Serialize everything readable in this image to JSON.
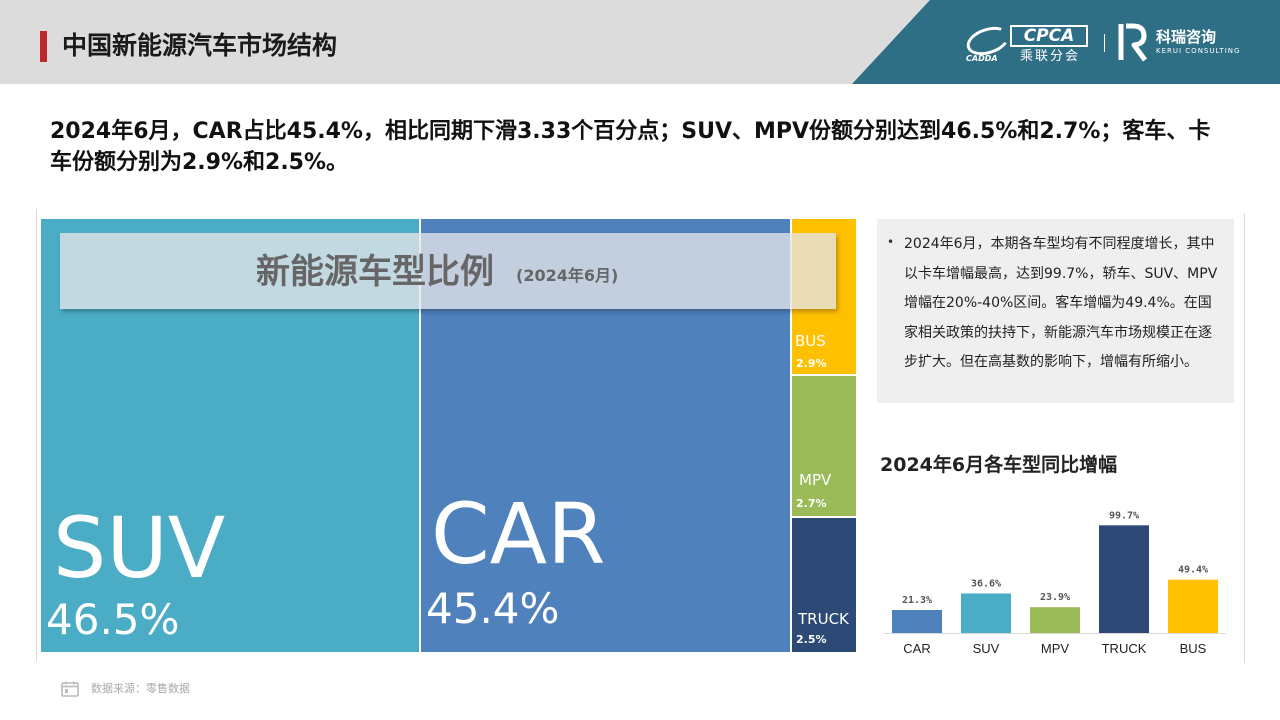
{
  "header": {
    "title": "中国新能源汽车市场结构",
    "logo_cpca": "CPCA",
    "logo_cpca_sub": "乘联分会",
    "logo_cpca_tag": "CADDA",
    "logo_kerui_name": "科瑞咨询",
    "logo_kerui_en": "KERUI CONSULTING",
    "band_color": "#2f6f86",
    "accent_color": "#c0262d"
  },
  "headline": "2024年6月，CAR占比45.4%，相比同期下滑3.33个百分点；SUV、MPV份额分别达到46.5%和2.7%；客车、卡车份额分别为2.9%和2.5%。",
  "note": {
    "text": "2024年6月，本期各车型均有不同程度增长，其中以卡车增幅最高，达到99.7%，轿车、SUV、MPV增幅在20%-40%区间。客车增幅为49.4%。在国家相关政策的扶持下，新能源汽车市场规模正在逐步扩大。但在高基数的影响下，增幅有所缩小。"
  },
  "footer": {
    "source": "数据来源：零售数据"
  },
  "chart_data": [
    {
      "type": "treemap",
      "title": "新能源车型比例",
      "subtitle": "(2024年6月)",
      "items": [
        {
          "name": "SUV",
          "label": "46.5%",
          "value": 46.5,
          "color": "#4bacc6"
        },
        {
          "name": "CAR",
          "label": "45.4%",
          "value": 45.4,
          "color": "#4f81bd"
        },
        {
          "name": "BUS",
          "label": "2.9%",
          "value": 2.9,
          "color": "#ffc000"
        },
        {
          "name": "MPV",
          "label": "2.7%",
          "value": 2.7,
          "color": "#9bbb59"
        },
        {
          "name": "TRUCK",
          "label": "2.5%",
          "value": 2.5,
          "color": "#2c4a75"
        }
      ]
    },
    {
      "type": "bar",
      "title": "2024年6月各车型同比增幅",
      "categories": [
        "CAR",
        "SUV",
        "MPV",
        "TRUCK",
        "BUS"
      ],
      "values": [
        21.3,
        36.6,
        23.9,
        99.7,
        49.4
      ],
      "labels": [
        "21.3%",
        "36.6%",
        "23.9%",
        "99.7%",
        "49.4%"
      ],
      "colors": [
        "#4f81bd",
        "#4bacc6",
        "#9bbb59",
        "#2c4a75",
        "#ffc000"
      ],
      "ylim": [
        0,
        100
      ],
      "grid": false,
      "legend": "none"
    }
  ]
}
